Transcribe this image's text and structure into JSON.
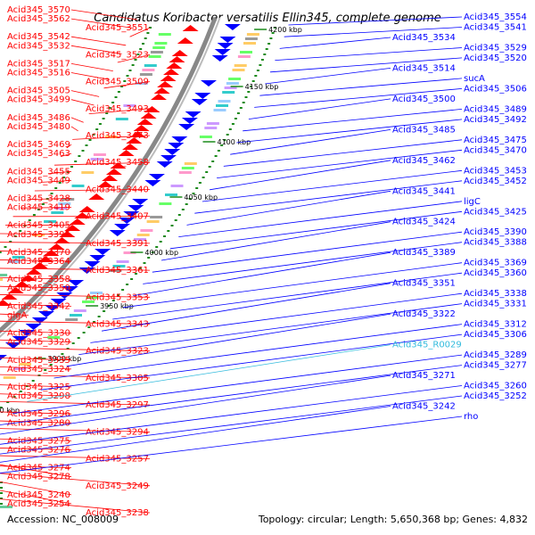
{
  "title": "Candidatus Koribacter versatilis Ellin345, complete genome",
  "footer": {
    "accession": "Accession: NC_008009",
    "summary": "Topology: circular; Length: 5,650,368 bp; Genes: 4,832"
  },
  "colors": {
    "reverse_strand": "#ff0000",
    "forward_strand": "#0000ff",
    "rna": "#33bbdd",
    "backbone": "#888888",
    "coordinate_tick": "#1a8a1a"
  },
  "coordinates": [
    "4200 kbp",
    "4150 kbp",
    "4100 kbp",
    "4050 kbp",
    "4000 kbp",
    "3950 kbp",
    "3900 kbp",
    "3850 kbp",
    "3800 kbp",
    "3750 kbp"
  ],
  "labels_left": [
    "Acid345_3570",
    "Acid345_3562",
    "Acid345_3551",
    "Acid345_3542",
    "Acid345_3532",
    "Acid345_3523",
    "Acid345_3517",
    "Acid345_3516",
    "Acid345_3509",
    "Acid345_3505",
    "Acid345_3499",
    "Acid345_3493",
    "Acid345_3486",
    "Acid345_3480",
    "Acid345_3473",
    "Acid345_3469",
    "Acid345_3463",
    "Acid345_3458",
    "Acid345_3455",
    "Acid345_3449",
    "Acid345_3440",
    "Acid345_3428",
    "Acid345_3419",
    "Acid345_3407",
    "Acid345_3405",
    "Acid345_3395",
    "Acid345_3391",
    "Acid345_3370",
    "Acid345_3364",
    "Acid345_3361",
    "Acid345_3358",
    "Acid345_3350",
    "Acid345_3353",
    "Acid345_3342",
    "glgA",
    "Acid345_3343",
    "Acid345_3330",
    "Acid345_3329",
    "Acid345_3323",
    "Acid345_3335",
    "Acid345_3324",
    "Acid345_3305",
    "Acid345_3325",
    "Acid345_3298",
    "Acid345_3297",
    "Acid345_3296",
    "Acid345_3280",
    "Acid345_3294",
    "Acid345_3275",
    "Acid345_3276",
    "Acid345_3257",
    "Acid345_3274",
    "Acid345_3278",
    "Acid345_3249",
    "Acid345_3240",
    "Acid345_3254",
    "Acid345_3238"
  ],
  "labels_right": [
    "Acid345_3554",
    "Acid345_3541",
    "Acid345_3534",
    "Acid345_3529",
    "Acid345_3520",
    "Acid345_3514",
    "sucA",
    "Acid345_3506",
    "Acid345_3500",
    "Acid345_3489",
    "Acid345_3492",
    "Acid345_3485",
    "Acid345_3475",
    "Acid345_3470",
    "Acid345_3462",
    "Acid345_3453",
    "Acid345_3452",
    "Acid345_3441",
    "ligC",
    "Acid345_3425",
    "Acid345_3424",
    "Acid345_3390",
    "Acid345_3388",
    "Acid345_3389",
    "Acid345_3369",
    "Acid345_3360",
    "Acid345_3351",
    "Acid345_3338",
    "Acid345_3331",
    "Acid345_3322",
    "Acid345_3312",
    "Acid345_3306",
    "Acid345_R0029",
    "Acid345_3289",
    "Acid345_3277",
    "Acid345_3271",
    "Acid345_3260",
    "Acid345_3252",
    "Acid345_3242",
    "rho"
  ]
}
